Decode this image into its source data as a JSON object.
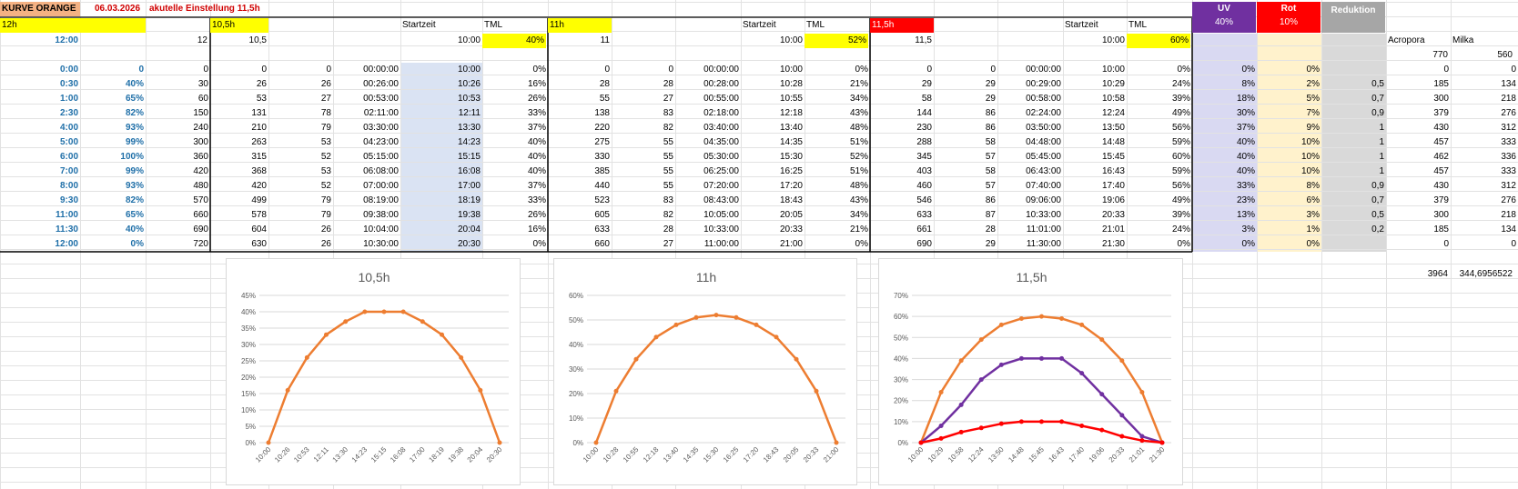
{
  "header": {
    "title": "KURVE ORANGE",
    "date": "06.03.2026",
    "setting": "akutelle Einstellung 11,5h"
  },
  "params": {
    "h12": "12h",
    "time12": "12:00",
    "v12": "12",
    "h105": "10,5h",
    "v105": "10,5",
    "h11": "11h",
    "v11": "11",
    "h115": "11,5h",
    "v115": "11,5",
    "startzeit": "Startzeit",
    "tml": "TML",
    "start_a": "10:00",
    "tml_a": "40%",
    "start_b": "10:00",
    "tml_b": "52%",
    "start_c": "10:00",
    "tml_c": "60%",
    "uv_label": "UV",
    "uv_pct": "40%",
    "rot_label": "Rot",
    "rot_pct": "10%",
    "reduktion_label": "Reduktion",
    "acropora": "Acropora",
    "milka": "Milka",
    "acropora_top": "770",
    "milka_top": "560",
    "acropora_sum": "3964",
    "milka_sum": "344,6956522"
  },
  "rows": [
    [
      "0:00",
      "0",
      "0",
      "0",
      "0",
      "00:00:00",
      "10:00",
      "0%",
      "0",
      "0",
      "00:00:00",
      "10:00",
      "0%",
      "0",
      "0",
      "00:00:00",
      "10:00",
      "0%",
      "0%",
      "0%",
      "",
      "0",
      "0"
    ],
    [
      "0:30",
      "40%",
      "30",
      "26",
      "26",
      "00:26:00",
      "10:26",
      "16%",
      "28",
      "28",
      "00:28:00",
      "10:28",
      "21%",
      "29",
      "29",
      "00:29:00",
      "10:29",
      "24%",
      "8%",
      "2%",
      "0,5",
      "185",
      "134"
    ],
    [
      "1:00",
      "65%",
      "60",
      "53",
      "27",
      "00:53:00",
      "10:53",
      "26%",
      "55",
      "27",
      "00:55:00",
      "10:55",
      "34%",
      "58",
      "29",
      "00:58:00",
      "10:58",
      "39%",
      "18%",
      "5%",
      "0,7",
      "300",
      "218"
    ],
    [
      "2:30",
      "82%",
      "150",
      "131",
      "78",
      "02:11:00",
      "12:11",
      "33%",
      "138",
      "83",
      "02:18:00",
      "12:18",
      "43%",
      "144",
      "86",
      "02:24:00",
      "12:24",
      "49%",
      "30%",
      "7%",
      "0,9",
      "379",
      "276"
    ],
    [
      "4:00",
      "93%",
      "240",
      "210",
      "79",
      "03:30:00",
      "13:30",
      "37%",
      "220",
      "82",
      "03:40:00",
      "13:40",
      "48%",
      "230",
      "86",
      "03:50:00",
      "13:50",
      "56%",
      "37%",
      "9%",
      "1",
      "430",
      "312"
    ],
    [
      "5:00",
      "99%",
      "300",
      "263",
      "53",
      "04:23:00",
      "14:23",
      "40%",
      "275",
      "55",
      "04:35:00",
      "14:35",
      "51%",
      "288",
      "58",
      "04:48:00",
      "14:48",
      "59%",
      "40%",
      "10%",
      "1",
      "457",
      "333"
    ],
    [
      "6:00",
      "100%",
      "360",
      "315",
      "52",
      "05:15:00",
      "15:15",
      "40%",
      "330",
      "55",
      "05:30:00",
      "15:30",
      "52%",
      "345",
      "57",
      "05:45:00",
      "15:45",
      "60%",
      "40%",
      "10%",
      "1",
      "462",
      "336"
    ],
    [
      "7:00",
      "99%",
      "420",
      "368",
      "53",
      "06:08:00",
      "16:08",
      "40%",
      "385",
      "55",
      "06:25:00",
      "16:25",
      "51%",
      "403",
      "58",
      "06:43:00",
      "16:43",
      "59%",
      "40%",
      "10%",
      "1",
      "457",
      "333"
    ],
    [
      "8:00",
      "93%",
      "480",
      "420",
      "52",
      "07:00:00",
      "17:00",
      "37%",
      "440",
      "55",
      "07:20:00",
      "17:20",
      "48%",
      "460",
      "57",
      "07:40:00",
      "17:40",
      "56%",
      "33%",
      "8%",
      "0,9",
      "430",
      "312"
    ],
    [
      "9:30",
      "82%",
      "570",
      "499",
      "79",
      "08:19:00",
      "18:19",
      "33%",
      "523",
      "83",
      "08:43:00",
      "18:43",
      "43%",
      "546",
      "86",
      "09:06:00",
      "19:06",
      "49%",
      "23%",
      "6%",
      "0,7",
      "379",
      "276"
    ],
    [
      "11:00",
      "65%",
      "660",
      "578",
      "79",
      "09:38:00",
      "19:38",
      "26%",
      "605",
      "82",
      "10:05:00",
      "20:05",
      "34%",
      "633",
      "87",
      "10:33:00",
      "20:33",
      "39%",
      "13%",
      "3%",
      "0,5",
      "300",
      "218"
    ],
    [
      "11:30",
      "40%",
      "690",
      "604",
      "26",
      "10:04:00",
      "20:04",
      "16%",
      "633",
      "28",
      "10:33:00",
      "20:33",
      "21%",
      "661",
      "28",
      "11:01:00",
      "21:01",
      "24%",
      "3%",
      "1%",
      "0,2",
      "185",
      "134"
    ],
    [
      "12:00",
      "0%",
      "720",
      "630",
      "26",
      "10:30:00",
      "20:30",
      "0%",
      "660",
      "27",
      "11:00:00",
      "21:00",
      "0%",
      "690",
      "29",
      "11:30:00",
      "21:30",
      "0%",
      "0%",
      "0%",
      "",
      "0",
      "0"
    ]
  ],
  "colors": {
    "yellow": "#ffff00",
    "orange_header": "#f4b183",
    "red_header": "#ff0000",
    "uv_header": "#7030a0",
    "uv_col": "#d9d9f2",
    "rot_header": "#ff0000",
    "rot_col": "#fff2cc",
    "red_col": "#d9d9d9",
    "red_header_gray": "#a6a6a6",
    "startzeit_fill": "#dae3f3",
    "orange_line": "#ed7d31",
    "purple_line": "#7030a0",
    "red_line": "#ff0000"
  },
  "chart_data": [
    {
      "type": "line",
      "title": "10,5h",
      "categories": [
        "10:00",
        "10:26",
        "10:53",
        "12:11",
        "13:30",
        "14:23",
        "15:15",
        "16:08",
        "17:00",
        "18:19",
        "19:38",
        "20:04",
        "20:30"
      ],
      "series": [
        {
          "values": [
            0,
            16,
            26,
            33,
            37,
            40,
            40,
            40,
            37,
            33,
            26,
            16,
            0
          ],
          "color": "#ed7d31"
        }
      ],
      "ylim": [
        0,
        45
      ],
      "yticks": [
        0,
        5,
        10,
        15,
        20,
        25,
        30,
        35,
        40,
        45
      ],
      "y_unit": "%",
      "grid": true
    },
    {
      "type": "line",
      "title": "11h",
      "categories": [
        "10:00",
        "10:28",
        "10:55",
        "12:18",
        "13:40",
        "14:35",
        "15:30",
        "16:25",
        "17:20",
        "18:43",
        "20:05",
        "20:33",
        "21:00"
      ],
      "series": [
        {
          "values": [
            0,
            21,
            34,
            43,
            48,
            51,
            52,
            51,
            48,
            43,
            34,
            21,
            0
          ],
          "color": "#ed7d31"
        }
      ],
      "ylim": [
        0,
        60
      ],
      "yticks": [
        0,
        10,
        20,
        30,
        40,
        50,
        60
      ],
      "y_unit": "%",
      "grid": true
    },
    {
      "type": "line",
      "title": "11,5h",
      "categories": [
        "10:00",
        "10:29",
        "10:58",
        "12:24",
        "13:50",
        "14:48",
        "15:45",
        "16:43",
        "17:40",
        "19:06",
        "20:33",
        "21:01",
        "21:30"
      ],
      "series": [
        {
          "values": [
            0,
            24,
            39,
            49,
            56,
            59,
            60,
            59,
            56,
            49,
            39,
            24,
            0
          ],
          "color": "#ed7d31"
        },
        {
          "values": [
            0,
            8,
            18,
            30,
            37,
            40,
            40,
            40,
            33,
            23,
            13,
            3,
            0
          ],
          "color": "#7030a0"
        },
        {
          "values": [
            0,
            2,
            5,
            7,
            9,
            10,
            10,
            10,
            8,
            6,
            3,
            1,
            0
          ],
          "color": "#ff0000"
        }
      ],
      "ylim": [
        0,
        70
      ],
      "yticks": [
        0,
        10,
        20,
        30,
        40,
        50,
        60,
        70
      ],
      "y_unit": "%",
      "grid": true
    }
  ]
}
